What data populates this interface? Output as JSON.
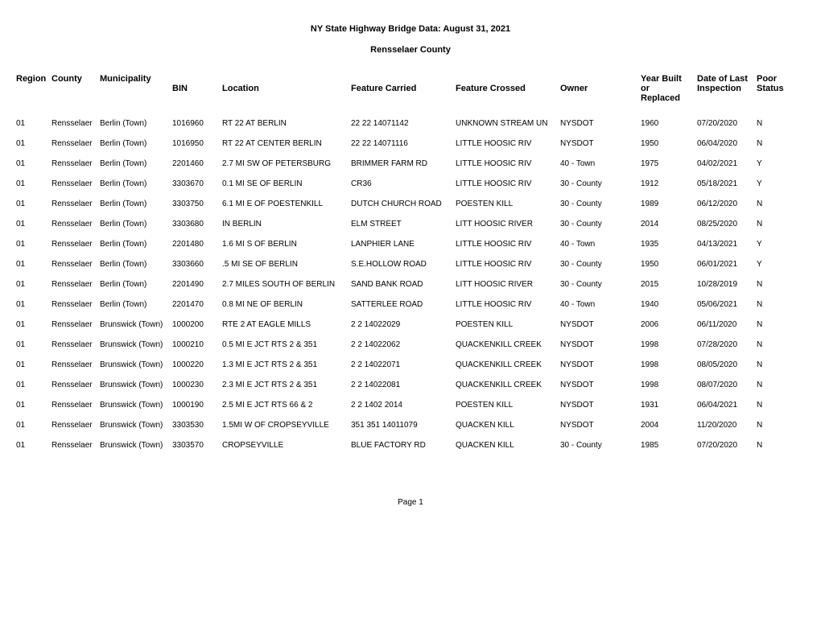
{
  "title": "NY State Highway Bridge Data:  August 31, 2021",
  "subtitle": "Rensselaer County",
  "footer": "Page 1",
  "columns": {
    "region": "Region",
    "county": "County",
    "municipality": "Municipality",
    "bin": "BIN",
    "location": "Location",
    "feature_carried": "Feature Carried",
    "feature_crossed": "Feature Crossed",
    "owner": "Owner",
    "year": "Year Built or Replaced",
    "date": "Date of Last Inspection",
    "poor": "Poor Status"
  },
  "rows": [
    {
      "region": "01",
      "county": "Rensselaer",
      "municipality": "Berlin (Town)",
      "bin": "1016960",
      "location": "RT 22 AT BERLIN",
      "carried": "22 22 14071142",
      "crossed": "UNKNOWN STREAM UN",
      "owner": "NYSDOT",
      "year": "1960",
      "date": "07/20/2020",
      "poor": "N"
    },
    {
      "region": "01",
      "county": "Rensselaer",
      "municipality": "Berlin (Town)",
      "bin": "1016950",
      "location": "RT 22 AT CENTER BERLIN",
      "carried": "22 22 14071116",
      "crossed": "LITTLE HOOSIC RIV",
      "owner": "NYSDOT",
      "year": "1950",
      "date": "06/04/2020",
      "poor": "N"
    },
    {
      "region": "01",
      "county": "Rensselaer",
      "municipality": "Berlin (Town)",
      "bin": "2201460",
      "location": "2.7 MI SW OF PETERSBURG",
      "carried": "BRIMMER FARM RD",
      "crossed": "LITTLE HOOSIC RIV",
      "owner": "40 - Town",
      "year": "1975",
      "date": "04/02/2021",
      "poor": "Y"
    },
    {
      "region": "01",
      "county": "Rensselaer",
      "municipality": "Berlin (Town)",
      "bin": "3303670",
      "location": "0.1 MI SE OF BERLIN",
      "carried": "CR36",
      "crossed": "LITTLE HOOSIC RIV",
      "owner": "30 - County",
      "year": "1912",
      "date": "05/18/2021",
      "poor": "Y"
    },
    {
      "region": "01",
      "county": "Rensselaer",
      "municipality": "Berlin (Town)",
      "bin": "3303750",
      "location": "6.1 MI E OF POESTENKILL",
      "carried": "DUTCH CHURCH ROAD",
      "crossed": "POESTEN KILL",
      "owner": "30 - County",
      "year": "1989",
      "date": "06/12/2020",
      "poor": "N"
    },
    {
      "region": "01",
      "county": "Rensselaer",
      "municipality": "Berlin (Town)",
      "bin": "3303680",
      "location": "IN BERLIN",
      "carried": "ELM STREET",
      "crossed": "LITT HOOSIC RIVER",
      "owner": "30 - County",
      "year": "2014",
      "date": "08/25/2020",
      "poor": "N"
    },
    {
      "region": "01",
      "county": "Rensselaer",
      "municipality": "Berlin (Town)",
      "bin": "2201480",
      "location": "1.6 MI S OF BERLIN",
      "carried": "LANPHIER LANE",
      "crossed": "LITTLE HOOSIC RIV",
      "owner": "40 - Town",
      "year": "1935",
      "date": "04/13/2021",
      "poor": "Y"
    },
    {
      "region": "01",
      "county": "Rensselaer",
      "municipality": "Berlin (Town)",
      "bin": "3303660",
      "location": ".5 MI SE OF BERLIN",
      "carried": "S.E.HOLLOW ROAD",
      "crossed": "LITTLE HOOSIC RIV",
      "owner": "30 - County",
      "year": "1950",
      "date": "06/01/2021",
      "poor": "Y"
    },
    {
      "region": "01",
      "county": "Rensselaer",
      "municipality": "Berlin (Town)",
      "bin": "2201490",
      "location": "2.7 MILES SOUTH OF BERLIN",
      "carried": "SAND BANK ROAD",
      "crossed": "LITT HOOSIC RIVER",
      "owner": "30 - County",
      "year": "2015",
      "date": "10/28/2019",
      "poor": "N"
    },
    {
      "region": "01",
      "county": "Rensselaer",
      "municipality": "Berlin (Town)",
      "bin": "2201470",
      "location": "0.8 MI NE OF BERLIN",
      "carried": "SATTERLEE ROAD",
      "crossed": "LITTLE HOOSIC RIV",
      "owner": "40 - Town",
      "year": "1940",
      "date": "05/06/2021",
      "poor": "N"
    },
    {
      "region": "01",
      "county": "Rensselaer",
      "municipality": "Brunswick (Town)",
      "bin": "1000200",
      "location": "RTE 2 AT EAGLE MILLS",
      "carried": "2  2 14022029",
      "crossed": "POESTEN KILL",
      "owner": "NYSDOT",
      "year": "2006",
      "date": "06/11/2020",
      "poor": "N"
    },
    {
      "region": "01",
      "county": "Rensselaer",
      "municipality": "Brunswick (Town)",
      "bin": "1000210",
      "location": "0.5 MI E JCT RTS 2 & 351",
      "carried": "2  2 14022062",
      "crossed": "QUACKENKILL CREEK",
      "owner": "NYSDOT",
      "year": "1998",
      "date": "07/28/2020",
      "poor": "N"
    },
    {
      "region": "01",
      "county": "Rensselaer",
      "municipality": "Brunswick (Town)",
      "bin": "1000220",
      "location": "1.3 MI E JCT RTS 2 & 351",
      "carried": "2  2 14022071",
      "crossed": "QUACKENKILL CREEK",
      "owner": "NYSDOT",
      "year": "1998",
      "date": "08/05/2020",
      "poor": "N"
    },
    {
      "region": "01",
      "county": "Rensselaer",
      "municipality": "Brunswick (Town)",
      "bin": "1000230",
      "location": "2.3 MI E JCT RTS 2 & 351",
      "carried": "2  2 14022081",
      "crossed": "QUACKENKILL CREEK",
      "owner": "NYSDOT",
      "year": "1998",
      "date": "08/07/2020",
      "poor": "N"
    },
    {
      "region": "01",
      "county": "Rensselaer",
      "municipality": "Brunswick (Town)",
      "bin": "1000190",
      "location": "2.5 MI E JCT RTS 66 & 2",
      "carried": "2 2 1402 2014",
      "crossed": "POESTEN KILL",
      "owner": "NYSDOT",
      "year": "1931",
      "date": "06/04/2021",
      "poor": "N"
    },
    {
      "region": "01",
      "county": "Rensselaer",
      "municipality": "Brunswick (Town)",
      "bin": "3303530",
      "location": "1.5MI W OF CROPSEYVILLE",
      "carried": "351 351 14011079",
      "crossed": "QUACKEN KILL",
      "owner": "NYSDOT",
      "year": "2004",
      "date": "11/20/2020",
      "poor": "N"
    },
    {
      "region": "01",
      "county": "Rensselaer",
      "municipality": "Brunswick (Town)",
      "bin": "3303570",
      "location": "CROPSEYVILLE",
      "carried": "BLUE FACTORY RD",
      "crossed": "QUACKEN KILL",
      "owner": "30 - County",
      "year": "1985",
      "date": "07/20/2020",
      "poor": "N"
    }
  ]
}
